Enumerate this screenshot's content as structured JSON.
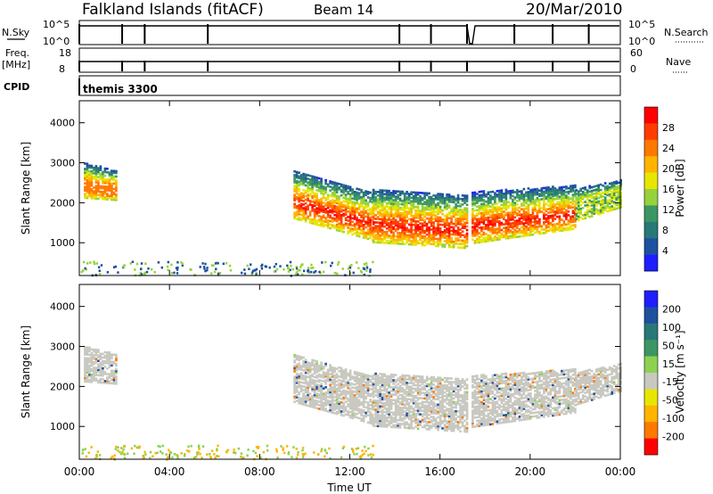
{
  "header": {
    "title": "Falkland Islands (fitACF)",
    "beam": "Beam 14",
    "date": "20/Mar/2010"
  },
  "top_panels": {
    "nsky_label": "N.Sky",
    "nsky_ticks": [
      "10^5",
      "10^0"
    ],
    "nsearch_label": "N.Search",
    "nsearch_ticks": [
      "10^5",
      "10^0"
    ],
    "freq_label": "Freq.",
    "freq_unit": "[MHz]",
    "freq_ticks": [
      "18",
      "8"
    ],
    "nave_label": "Nave",
    "nave_ticks": [
      "60",
      "0"
    ],
    "cpid_label": "CPID",
    "cpid_value": "themis 3300"
  },
  "chart_data": [
    {
      "type": "heatmap",
      "name": "power",
      "ylabel": "Slant Range [km]",
      "yticks": [
        1000,
        2000,
        3000,
        4000
      ],
      "ylim": [
        180,
        4550
      ],
      "xlim": [
        0,
        24
      ],
      "colorbar": {
        "label": "Power [dB]",
        "ticks": [
          "28",
          "24",
          "20",
          "16",
          "12",
          "8",
          "4"
        ],
        "colors": [
          "#ff0000",
          "#ff3c00",
          "#ff7800",
          "#ffb400",
          "#e6e600",
          "#96d23c",
          "#3c9664",
          "#287878",
          "#1e50a0",
          "#1e1eff"
        ]
      },
      "bands": [
        {
          "x": [
            0.2,
            1.6
          ],
          "center": [
            2400,
            2300
          ],
          "width": [
            650,
            550
          ],
          "peak": "#ff7800"
        },
        {
          "x": [
            9.5,
            13
          ],
          "center": [
            2000,
            1450
          ],
          "width": [
            900,
            900
          ],
          "peak": "#ff3c00"
        },
        {
          "x": [
            13,
            17.2
          ],
          "center": [
            1450,
            1300
          ],
          "width": [
            1000,
            1000
          ],
          "peak": "#ff0000"
        },
        {
          "x": [
            17.4,
            22
          ],
          "center": [
            1400,
            1700
          ],
          "width": [
            950,
            800
          ],
          "peak": "#ff3c00"
        },
        {
          "x": [
            22,
            24
          ],
          "center": [
            1800,
            2100
          ],
          "width": [
            600,
            500
          ],
          "peak": "#96d23c"
        }
      ]
    },
    {
      "type": "heatmap",
      "name": "velocity",
      "ylabel": "Slant Range [km]",
      "yticks": [
        1000,
        2000,
        3000,
        4000
      ],
      "ylim": [
        180,
        4550
      ],
      "xlim": [
        0,
        24
      ],
      "xticks": [
        "00:00",
        "04:00",
        "08:00",
        "12:00",
        "16:00",
        "20:00",
        "00:00"
      ],
      "xlabel": "Time UT",
      "colorbar": {
        "label": "Velocity [m s⁻¹]",
        "ticks": [
          "200",
          "100",
          "50",
          "15",
          "-15",
          "-50",
          "-100",
          "-200"
        ],
        "colors": [
          "#1e1eff",
          "#1e50a0",
          "#287878",
          "#3c9664",
          "#8cd250",
          "#c8c8c0",
          "#e6e600",
          "#ffb400",
          "#ff7800",
          "#ff0000"
        ]
      },
      "bands": [
        {
          "x": [
            0.2,
            1.6
          ],
          "center": [
            2400,
            2300
          ],
          "width": [
            650,
            550
          ],
          "peak": "#c8c8c0"
        },
        {
          "x": [
            9.5,
            13
          ],
          "center": [
            2000,
            1450
          ],
          "width": [
            900,
            900
          ],
          "peak": "#c8c8c0"
        },
        {
          "x": [
            13,
            17.2
          ],
          "center": [
            1450,
            1300
          ],
          "width": [
            1000,
            1000
          ],
          "peak": "#c8c8c0"
        },
        {
          "x": [
            17.4,
            22
          ],
          "center": [
            1400,
            1700
          ],
          "width": [
            950,
            800
          ],
          "peak": "#c8c8c0"
        },
        {
          "x": [
            22,
            24
          ],
          "center": [
            1800,
            2100
          ],
          "width": [
            600,
            500
          ],
          "peak": "#c8c8c0"
        }
      ]
    }
  ]
}
